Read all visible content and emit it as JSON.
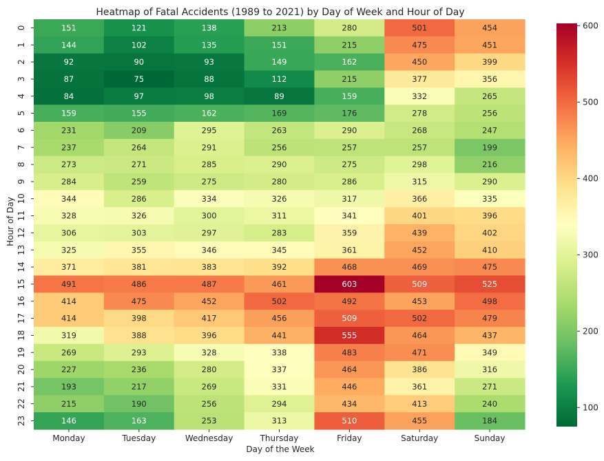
{
  "chart_data": {
    "type": "heatmap",
    "title": "Heatmap of Fatal Accidents (1989 to 2021) by Day of Week and Hour of Day",
    "xlabel": "Day of the Week",
    "ylabel": "Hour of Day",
    "x_categories": [
      "Monday",
      "Tuesday",
      "Wednesday",
      "Thursday",
      "Friday",
      "Saturday",
      "Sunday"
    ],
    "y_categories": [
      "0",
      "1",
      "2",
      "3",
      "4",
      "5",
      "6",
      "7",
      "8",
      "9",
      "10",
      "11",
      "12",
      "13",
      "14",
      "15",
      "16",
      "17",
      "18",
      "19",
      "20",
      "21",
      "22",
      "23"
    ],
    "values": [
      [
        151,
        121,
        138,
        213,
        280,
        501,
        454
      ],
      [
        144,
        102,
        135,
        151,
        215,
        475,
        451
      ],
      [
        92,
        90,
        93,
        149,
        162,
        450,
        399
      ],
      [
        87,
        75,
        88,
        112,
        215,
        377,
        356
      ],
      [
        84,
        97,
        98,
        89,
        159,
        332,
        265
      ],
      [
        159,
        155,
        162,
        169,
        176,
        278,
        256
      ],
      [
        231,
        209,
        295,
        263,
        290,
        268,
        247
      ],
      [
        237,
        264,
        291,
        256,
        257,
        257,
        199
      ],
      [
        273,
        271,
        285,
        290,
        275,
        298,
        216
      ],
      [
        284,
        259,
        275,
        280,
        286,
        315,
        290
      ],
      [
        344,
        286,
        334,
        326,
        317,
        366,
        335
      ],
      [
        328,
        326,
        300,
        311,
        341,
        401,
        396
      ],
      [
        306,
        303,
        297,
        283,
        359,
        439,
        402
      ],
      [
        325,
        355,
        346,
        345,
        361,
        452,
        410
      ],
      [
        371,
        381,
        383,
        392,
        468,
        469,
        475
      ],
      [
        491,
        486,
        487,
        461,
        603,
        509,
        525
      ],
      [
        414,
        475,
        452,
        502,
        492,
        453,
        498
      ],
      [
        414,
        398,
        417,
        456,
        509,
        502,
        479
      ],
      [
        319,
        388,
        396,
        441,
        555,
        464,
        437
      ],
      [
        269,
        293,
        328,
        338,
        483,
        471,
        349
      ],
      [
        227,
        236,
        280,
        337,
        464,
        386,
        316
      ],
      [
        193,
        217,
        269,
        331,
        446,
        361,
        271
      ],
      [
        215,
        190,
        256,
        294,
        434,
        413,
        240
      ],
      [
        146,
        163,
        253,
        313,
        510,
        455,
        184
      ]
    ],
    "colormap": "RdYlGn_r",
    "colorbar": {
      "min": 75,
      "max": 603,
      "ticks": [
        100,
        200,
        300,
        400,
        500,
        600
      ]
    },
    "annotations": true
  }
}
